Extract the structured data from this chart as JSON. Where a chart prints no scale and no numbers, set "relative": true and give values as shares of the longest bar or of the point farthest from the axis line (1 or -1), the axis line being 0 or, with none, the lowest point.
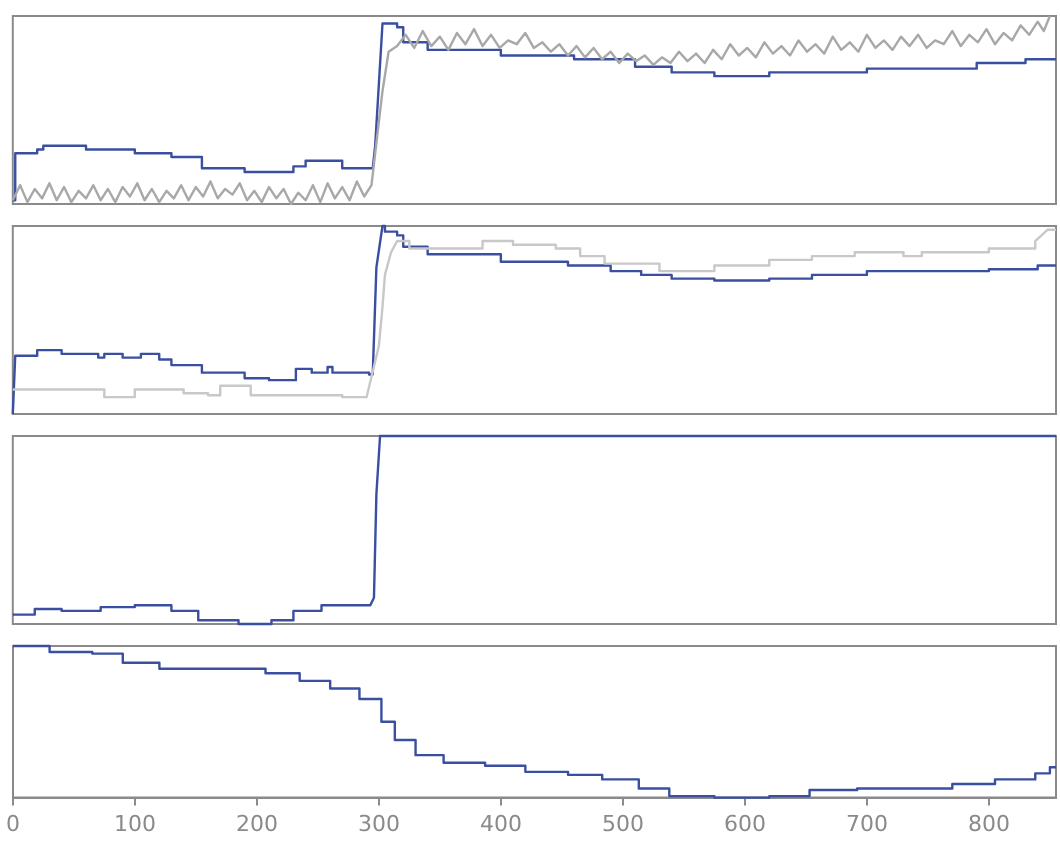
{
  "chart_data": [
    {
      "type": "line",
      "relative": true,
      "xlim": [
        0,
        855
      ],
      "xticks": [
        0,
        100,
        200,
        300,
        400,
        500,
        600,
        700,
        800
      ],
      "tick_labels": false,
      "grid": false,
      "legend": false,
      "series": [
        {
          "color": "#a8a8a8",
          "x": [
            0,
            6,
            12,
            18,
            24,
            30,
            36,
            42,
            48,
            54,
            60,
            66,
            72,
            78,
            84,
            90,
            96,
            102,
            108,
            114,
            120,
            126,
            132,
            138,
            144,
            150,
            156,
            162,
            168,
            174,
            180,
            186,
            192,
            198,
            204,
            210,
            216,
            222,
            228,
            234,
            240,
            246,
            252,
            258,
            264,
            270,
            276,
            282,
            288,
            294,
            297,
            303,
            308,
            315,
            322,
            329,
            336,
            343,
            350,
            357,
            364,
            371,
            378,
            385,
            392,
            399,
            406,
            413,
            420,
            427,
            434,
            441,
            448,
            455,
            462,
            469,
            476,
            483,
            490,
            497,
            504,
            511,
            518,
            525,
            532,
            539,
            546,
            553,
            560,
            567,
            574,
            581,
            588,
            595,
            602,
            609,
            616,
            623,
            630,
            637,
            644,
            651,
            658,
            665,
            672,
            679,
            686,
            693,
            700,
            707,
            714,
            721,
            728,
            735,
            742,
            749,
            756,
            763,
            770,
            777,
            784,
            791,
            798,
            805,
            812,
            819,
            826,
            833,
            840,
            845,
            850
          ],
          "values": [
            0.02,
            0.1,
            0.01,
            0.08,
            0.03,
            0.11,
            0.02,
            0.09,
            0.01,
            0.07,
            0.03,
            0.1,
            0.02,
            0.08,
            0.01,
            0.09,
            0.04,
            0.11,
            0.02,
            0.08,
            0.01,
            0.07,
            0.03,
            0.1,
            0.02,
            0.09,
            0.04,
            0.12,
            0.03,
            0.08,
            0.05,
            0.11,
            0.02,
            0.07,
            0.01,
            0.09,
            0.03,
            0.08,
            0,
            0.06,
            0.02,
            0.1,
            0.01,
            0.11,
            0.03,
            0.09,
            0.02,
            0.12,
            0.04,
            0.1,
            0.27,
            0.6,
            0.81,
            0.84,
            0.9,
            0.83,
            0.92,
            0.84,
            0.89,
            0.82,
            0.91,
            0.85,
            0.93,
            0.84,
            0.9,
            0.83,
            0.87,
            0.85,
            0.91,
            0.83,
            0.86,
            0.81,
            0.85,
            0.79,
            0.84,
            0.78,
            0.83,
            0.77,
            0.81,
            0.75,
            0.8,
            0.76,
            0.79,
            0.74,
            0.78,
            0.75,
            0.81,
            0.76,
            0.8,
            0.75,
            0.82,
            0.77,
            0.85,
            0.79,
            0.83,
            0.78,
            0.86,
            0.8,
            0.84,
            0.79,
            0.87,
            0.81,
            0.85,
            0.8,
            0.89,
            0.82,
            0.86,
            0.81,
            0.9,
            0.83,
            0.87,
            0.82,
            0.89,
            0.84,
            0.9,
            0.83,
            0.87,
            0.85,
            0.92,
            0.84,
            0.9,
            0.86,
            0.93,
            0.85,
            0.91,
            0.87,
            0.95,
            0.9,
            0.97,
            0.92,
            1.0
          ]
        },
        {
          "color": "#3a4fa0",
          "x": [
            0,
            2,
            2,
            20,
            20,
            25,
            25,
            60,
            60,
            100,
            100,
            130,
            130,
            155,
            155,
            190,
            190,
            230,
            230,
            240,
            240,
            270,
            270,
            295,
            297,
            303,
            315,
            315,
            320,
            320,
            340,
            340,
            400,
            400,
            460,
            460,
            510,
            510,
            540,
            540,
            575,
            575,
            620,
            620,
            700,
            700,
            790,
            790,
            830,
            830,
            855
          ],
          "values": [
            0.02,
            0.02,
            0.27,
            0.27,
            0.29,
            0.29,
            0.31,
            0.31,
            0.29,
            0.29,
            0.27,
            0.27,
            0.25,
            0.25,
            0.19,
            0.19,
            0.17,
            0.17,
            0.2,
            0.2,
            0.23,
            0.23,
            0.19,
            0.19,
            0.31,
            0.96,
            0.96,
            0.94,
            0.94,
            0.86,
            0.86,
            0.82,
            0.82,
            0.79,
            0.79,
            0.77,
            0.77,
            0.73,
            0.73,
            0.7,
            0.7,
            0.68,
            0.68,
            0.7,
            0.7,
            0.72,
            0.72,
            0.75,
            0.75,
            0.77,
            0.77
          ]
        }
      ]
    },
    {
      "type": "line",
      "relative": true,
      "xlim": [
        0,
        855
      ],
      "xticks": [
        0,
        100,
        200,
        300,
        400,
        500,
        600,
        700,
        800
      ],
      "tick_labels": false,
      "grid": false,
      "legend": false,
      "series": [
        {
          "color": "#c8c8c8",
          "x": [
            0,
            75,
            75,
            100,
            100,
            140,
            140,
            160,
            160,
            170,
            170,
            195,
            195,
            270,
            270,
            290,
            300,
            303,
            305,
            310,
            315,
            325,
            325,
            385,
            385,
            410,
            410,
            445,
            445,
            465,
            465,
            485,
            485,
            530,
            530,
            575,
            575,
            620,
            620,
            655,
            655,
            690,
            690,
            730,
            730,
            745,
            745,
            800,
            800,
            838,
            838,
            848,
            855
          ],
          "values": [
            0.13,
            0.13,
            0.09,
            0.09,
            0.13,
            0.13,
            0.11,
            0.11,
            0.1,
            0.1,
            0.15,
            0.15,
            0.1,
            0.1,
            0.09,
            0.09,
            0.36,
            0.57,
            0.74,
            0.86,
            0.92,
            0.92,
            0.88,
            0.88,
            0.92,
            0.92,
            0.9,
            0.9,
            0.88,
            0.88,
            0.84,
            0.84,
            0.8,
            0.8,
            0.76,
            0.76,
            0.79,
            0.79,
            0.82,
            0.82,
            0.84,
            0.84,
            0.86,
            0.86,
            0.84,
            0.84,
            0.86,
            0.86,
            0.88,
            0.88,
            0.92,
            0.98,
            0.98
          ]
        },
        {
          "color": "#3a4fa0",
          "x": [
            0,
            2,
            20,
            20,
            40,
            40,
            70,
            70,
            75,
            75,
            90,
            90,
            105,
            105,
            120,
            120,
            130,
            130,
            155,
            155,
            190,
            190,
            210,
            210,
            232,
            232,
            245,
            245,
            258,
            258,
            262,
            262,
            292,
            292,
            295,
            298,
            303,
            305,
            305,
            315,
            315,
            320,
            320,
            340,
            340,
            400,
            400,
            455,
            455,
            490,
            490,
            515,
            515,
            540,
            540,
            575,
            575,
            620,
            620,
            655,
            655,
            700,
            700,
            800,
            800,
            840,
            840,
            855
          ],
          "values": [
            0,
            0.31,
            0.31,
            0.34,
            0.34,
            0.32,
            0.32,
            0.3,
            0.3,
            0.32,
            0.32,
            0.3,
            0.3,
            0.32,
            0.32,
            0.29,
            0.29,
            0.26,
            0.26,
            0.22,
            0.22,
            0.19,
            0.19,
            0.18,
            0.18,
            0.24,
            0.24,
            0.22,
            0.22,
            0.25,
            0.25,
            0.22,
            0.22,
            0.21,
            0.21,
            0.78,
            1.0,
            1.0,
            0.97,
            0.97,
            0.95,
            0.95,
            0.89,
            0.89,
            0.85,
            0.85,
            0.81,
            0.81,
            0.79,
            0.79,
            0.76,
            0.76,
            0.74,
            0.74,
            0.72,
            0.72,
            0.71,
            0.71,
            0.72,
            0.72,
            0.74,
            0.74,
            0.76,
            0.76,
            0.77,
            0.77,
            0.79,
            0.79
          ]
        }
      ]
    },
    {
      "type": "line",
      "relative": true,
      "xlim": [
        0,
        855
      ],
      "xticks": [
        0,
        100,
        200,
        300,
        400,
        500,
        600,
        700,
        800
      ],
      "tick_labels": false,
      "grid": false,
      "legend": false,
      "series": [
        {
          "color": "#3a4fa0",
          "x": [
            0,
            18,
            18,
            40,
            40,
            72,
            72,
            100,
            100,
            130,
            130,
            152,
            152,
            185,
            185,
            212,
            212,
            230,
            230,
            253,
            253,
            293,
            296,
            298,
            301,
            855
          ],
          "values": [
            0.05,
            0.05,
            0.08,
            0.08,
            0.07,
            0.07,
            0.09,
            0.09,
            0.1,
            0.1,
            0.07,
            0.07,
            0.02,
            0.02,
            0,
            0,
            0.02,
            0.02,
            0.07,
            0.07,
            0.1,
            0.1,
            0.14,
            0.69,
            1,
            1
          ]
        }
      ]
    },
    {
      "type": "line",
      "relative": true,
      "xlim": [
        0,
        855
      ],
      "xticks": [
        0,
        100,
        200,
        300,
        400,
        500,
        600,
        700,
        800
      ],
      "tick_labels": "x",
      "grid": false,
      "legend": false,
      "series": [
        {
          "color": "#3a4fa0",
          "x": [
            0,
            30,
            30,
            65,
            65,
            90,
            90,
            120,
            120,
            207,
            207,
            235,
            235,
            260,
            260,
            284,
            284,
            302,
            302,
            313,
            313,
            330,
            330,
            353,
            353,
            387,
            387,
            420,
            420,
            455,
            455,
            483,
            483,
            513,
            513,
            538,
            538,
            575,
            575,
            620,
            620,
            653,
            653,
            692,
            692,
            770,
            770,
            805,
            805,
            838,
            838,
            850,
            850,
            855
          ],
          "values": [
            1,
            1,
            0.96,
            0.96,
            0.95,
            0.95,
            0.89,
            0.89,
            0.85,
            0.85,
            0.82,
            0.82,
            0.77,
            0.77,
            0.72,
            0.72,
            0.65,
            0.65,
            0.5,
            0.5,
            0.38,
            0.38,
            0.28,
            0.28,
            0.23,
            0.23,
            0.21,
            0.21,
            0.17,
            0.17,
            0.15,
            0.15,
            0.12,
            0.12,
            0.06,
            0.06,
            0.01,
            0.01,
            0,
            0,
            0.01,
            0.01,
            0.05,
            0.05,
            0.06,
            0.06,
            0.09,
            0.09,
            0.12,
            0.12,
            0.16,
            0.16,
            0.2,
            0.2
          ]
        }
      ]
    }
  ]
}
